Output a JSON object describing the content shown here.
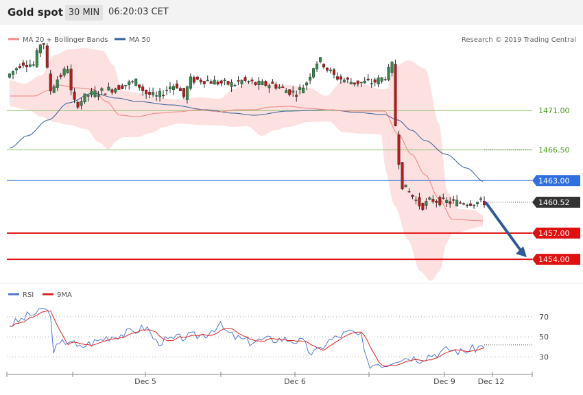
{
  "header": {
    "title": "Gold spot",
    "timeframe": "30 MIN",
    "time": "06:20:03 CET"
  },
  "credit": "Research © 2019 Trading Central",
  "chart_data": [
    {
      "type": "candlestick",
      "legend": [
        "MA 20 + Bollinger Bands",
        "MA 50"
      ],
      "x_ticks": [
        "Dec 5",
        "Dec 6",
        "Dec 9",
        "Dec 12"
      ],
      "ylim": [
        1451.5,
        1480.5
      ],
      "levels": [
        {
          "value": 1471.0,
          "label": "1471.00",
          "color": "#8fc46a",
          "style": "green-line"
        },
        {
          "value": 1466.5,
          "label": "1466.50",
          "color": "#8fc46a",
          "style": "green-line"
        },
        {
          "value": 1463.0,
          "label": "1463.00",
          "color": "#2f6fe0",
          "style": "blue-line"
        },
        {
          "value": 1460.52,
          "label": "1460.52",
          "color": "#333333",
          "style": "price"
        },
        {
          "value": 1457.0,
          "label": "1457.00",
          "color": "#e01010",
          "style": "red-line"
        },
        {
          "value": 1454.0,
          "label": "1454.00",
          "color": "#e01010",
          "style": "red-line"
        }
      ],
      "forecast_target": 1454.0
    },
    {
      "type": "line",
      "series": [
        {
          "name": "RSI",
          "color": "#5577cc"
        },
        {
          "name": "9MA",
          "color": "#dd2222"
        }
      ],
      "y_ticks": [
        70,
        50,
        30
      ],
      "ylim": [
        18,
        85
      ]
    }
  ]
}
